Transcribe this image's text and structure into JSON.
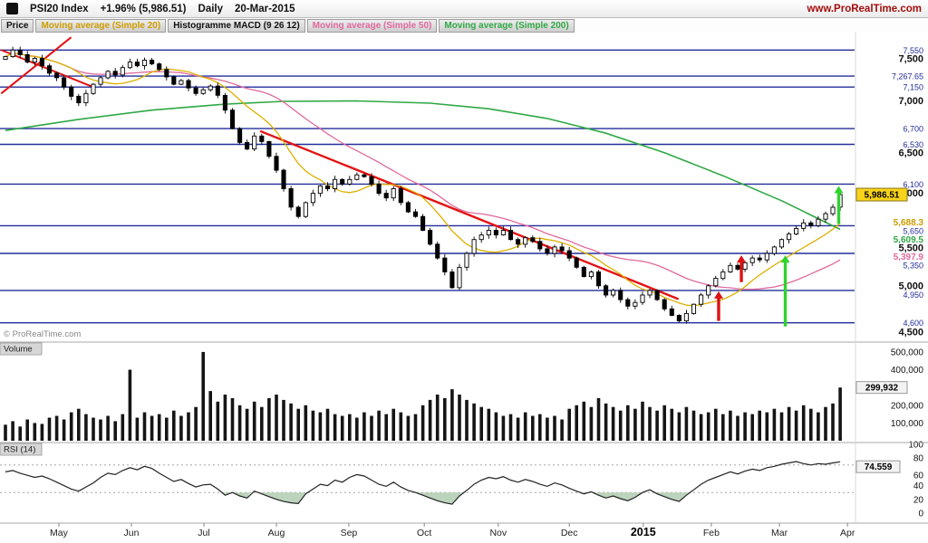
{
  "header": {
    "symbol": "PSI20 Index",
    "change": "+1.96% (5,986.51)",
    "timeframe": "Daily",
    "date": "20-Mar-2015",
    "site": "www.ProRealTime.com"
  },
  "legend": {
    "items": [
      {
        "label": "Price",
        "color": "#111111"
      },
      {
        "label": "Moving average (Simple 20)",
        "color": "#cf9c00"
      },
      {
        "label": "Histogramme MACD (9 26 12)",
        "color": "#111111"
      },
      {
        "label": "Moving average (Simple 50)",
        "color": "#e0699e"
      },
      {
        "label": "Moving average (Simple 200)",
        "color": "#2fa845"
      }
    ]
  },
  "chart_data": {
    "type": "candlestick",
    "title": "PSI20 Index Daily 20-Mar-2015",
    "colors": {
      "up": "#ffffff",
      "down": "#000000",
      "ma20": "#dcb000",
      "ma50": "#e0699e",
      "ma200": "#2fa845",
      "level": "#232d9b",
      "trend": "#e31212",
      "arrow_red": "#dd1111",
      "arrow_green": "#2fd32f",
      "last_bg": "#f7d31b"
    },
    "x_axis": {
      "months": [
        {
          "label": "May",
          "i": 7.3
        },
        {
          "label": "Jun",
          "i": 17.2
        },
        {
          "label": "Jul",
          "i": 27.1
        },
        {
          "label": "Aug",
          "i": 37
        },
        {
          "label": "Sep",
          "i": 46.9
        },
        {
          "label": "Oct",
          "i": 57.2
        },
        {
          "label": "Nov",
          "i": 67.3
        },
        {
          "label": "Dec",
          "i": 77
        },
        {
          "label": "2015",
          "i": 87.1,
          "bold": true
        },
        {
          "label": "Feb",
          "i": 96.4
        },
        {
          "label": "Mar",
          "i": 105.7
        },
        {
          "label": "Apr",
          "i": 115
        }
      ]
    },
    "price": {
      "range": [
        4440,
        7690
      ],
      "copyright": "© ProRealTime.com",
      "ticks": [
        {
          "label": "7,500",
          "value": 7500
        },
        {
          "label": "7,000",
          "value": 7000
        },
        {
          "label": "6,500",
          "value": 6500
        },
        {
          "label": "6,000",
          "value": 6000
        },
        {
          "label": "5,500",
          "value": 5500
        },
        {
          "label": "5,000",
          "value": 5000
        },
        {
          "label": "4,500",
          "value": 4500
        }
      ],
      "levels": [
        {
          "label": "7,550",
          "value": 7550
        },
        {
          "label": "7,267.65",
          "value": 7267.65
        },
        {
          "label": "7,150",
          "value": 7150
        },
        {
          "label": "6,700",
          "value": 6700
        },
        {
          "label": "6,530",
          "value": 6530
        },
        {
          "label": "6,100",
          "value": 6100
        },
        {
          "label": "5,650",
          "value": 5650
        },
        {
          "label": "5,350",
          "value": 5350
        },
        {
          "label": "4,950",
          "value": 4950
        },
        {
          "label": "4,600",
          "value": 4600
        }
      ],
      "last": {
        "label": "5,986.51",
        "value": 5986.51
      },
      "ma_labels": [
        {
          "label": "5,688.3",
          "value": 5688.3,
          "color": "#cf9c00"
        },
        {
          "label": "5,609.5",
          "value": 5609.5,
          "color": "#2fa845"
        },
        {
          "label": "5,397.9",
          "value": 5397.9,
          "color": "#e0699e"
        }
      ],
      "ma20_window": 10,
      "ma50_window": 25,
      "ma200": [
        [
          0,
          6680
        ],
        [
          10,
          6800
        ],
        [
          20,
          6900
        ],
        [
          30,
          6965
        ],
        [
          38,
          6995
        ],
        [
          48,
          7000
        ],
        [
          58,
          6975
        ],
        [
          66,
          6915
        ],
        [
          74,
          6810
        ],
        [
          82,
          6650
        ],
        [
          90,
          6440
        ],
        [
          98,
          6190
        ],
        [
          106,
          5920
        ],
        [
          114,
          5610
        ]
      ],
      "trendlines": [
        {
          "i1": -0.5,
          "p1": 7085,
          "i2": 8.9,
          "p2": 7683,
          "w": 2
        },
        {
          "i1": -0.5,
          "p1": 7548,
          "i2": 11.6,
          "p2": 7162,
          "w": 2
        },
        {
          "i1": 34.9,
          "p1": 6670,
          "i2": 91.8,
          "p2": 4860,
          "w": 2.4
        }
      ],
      "arrows": [
        {
          "i": 97.4,
          "from": 4620,
          "to": 4940,
          "dir": "red"
        },
        {
          "i": 100.5,
          "from": 5040,
          "to": 5330,
          "dir": "red"
        },
        {
          "i": 106.5,
          "from": 4560,
          "to": 5330,
          "dir": "green"
        },
        {
          "i": 113.8,
          "from": 5670,
          "to": 6080,
          "dir": "green"
        }
      ],
      "closes": [
        7480,
        7550,
        7500,
        7420,
        7460,
        7380,
        7300,
        7250,
        7150,
        7050,
        6980,
        7080,
        7180,
        7250,
        7320,
        7280,
        7360,
        7420,
        7380,
        7440,
        7400,
        7340,
        7260,
        7180,
        7220,
        7140,
        7080,
        7120,
        7160,
        7060,
        6900,
        6700,
        6550,
        6480,
        6620,
        6560,
        6400,
        6250,
        6050,
        5850,
        5750,
        5900,
        6000,
        6080,
        6050,
        6150,
        6100,
        6150,
        6200,
        6180,
        6100,
        6000,
        5950,
        6050,
        5900,
        5800,
        5750,
        5600,
        5450,
        5300,
        5150,
        4980,
        5200,
        5350,
        5500,
        5550,
        5600,
        5550,
        5600,
        5500,
        5450,
        5520,
        5480,
        5400,
        5350,
        5420,
        5380,
        5300,
        5200,
        5100,
        5150,
        5000,
        4900,
        4950,
        4850,
        4780,
        4820,
        4900,
        4950,
        4850,
        4750,
        4680,
        4620,
        4700,
        4800,
        4900,
        5000,
        5080,
        5150,
        5220,
        5180,
        5250,
        5300,
        5280,
        5350,
        5420,
        5500,
        5560,
        5620,
        5680,
        5650,
        5720,
        5780,
        5850,
        5986.51
      ]
    },
    "volume": {
      "label": "Volume",
      "max_k": 520,
      "ticks": [
        {
          "label": "500,000",
          "value": 500
        },
        {
          "label": "400,000",
          "value": 400
        },
        {
          "label": "200,000",
          "value": 200
        },
        {
          "label": "100,000",
          "value": 100
        }
      ],
      "current": {
        "label": "299,932",
        "value": 299.932
      },
      "values_k": [
        90,
        110,
        80,
        120,
        100,
        95,
        130,
        140,
        120,
        160,
        180,
        150,
        130,
        120,
        140,
        110,
        150,
        400,
        130,
        160,
        140,
        150,
        130,
        170,
        140,
        160,
        190,
        500,
        280,
        220,
        260,
        240,
        200,
        180,
        220,
        190,
        240,
        260,
        230,
        210,
        180,
        200,
        170,
        160,
        180,
        150,
        140,
        150,
        130,
        160,
        140,
        170,
        150,
        180,
        160,
        140,
        150,
        200,
        230,
        260,
        240,
        290,
        260,
        230,
        210,
        190,
        180,
        160,
        140,
        150,
        130,
        160,
        140,
        150,
        130,
        140,
        120,
        180,
        200,
        220,
        190,
        240,
        210,
        190,
        170,
        200,
        180,
        220,
        190,
        170,
        200,
        180,
        160,
        190,
        170,
        150,
        160,
        180,
        150,
        170,
        140,
        160,
        150,
        170,
        160,
        180,
        160,
        190,
        170,
        200,
        180,
        160,
        190,
        210,
        299.932
      ]
    },
    "rsi": {
      "label": "RSI (14)",
      "guides": [
        30,
        70
      ],
      "ticks": [
        {
          "label": "100",
          "value": 100
        },
        {
          "label": "80",
          "value": 80
        },
        {
          "label": "60",
          "value": 60
        },
        {
          "label": "40",
          "value": 40
        },
        {
          "label": "20",
          "value": 20
        },
        {
          "label": "0",
          "value": 0
        }
      ],
      "current": {
        "label": "74.559",
        "value": 74.559
      },
      "values": [
        60,
        62,
        58,
        55,
        52,
        54,
        50,
        45,
        40,
        35,
        32,
        38,
        44,
        52,
        58,
        56,
        62,
        66,
        63,
        68,
        65,
        58,
        52,
        46,
        49,
        43,
        38,
        41,
        42,
        35,
        26,
        30,
        25,
        22,
        32,
        28,
        24,
        20,
        17,
        15,
        14,
        28,
        35,
        42,
        40,
        48,
        45,
        52,
        56,
        54,
        48,
        42,
        39,
        45,
        38,
        33,
        30,
        26,
        22,
        18,
        15,
        13,
        25,
        33,
        42,
        48,
        52,
        50,
        53,
        48,
        45,
        49,
        46,
        42,
        39,
        44,
        41,
        36,
        32,
        28,
        31,
        26,
        22,
        25,
        21,
        18,
        23,
        30,
        34,
        28,
        24,
        20,
        17,
        26,
        34,
        42,
        48,
        52,
        56,
        60,
        57,
        61,
        64,
        62,
        66,
        68,
        71,
        73,
        75,
        72,
        70,
        72,
        71,
        73,
        74.559
      ]
    }
  }
}
